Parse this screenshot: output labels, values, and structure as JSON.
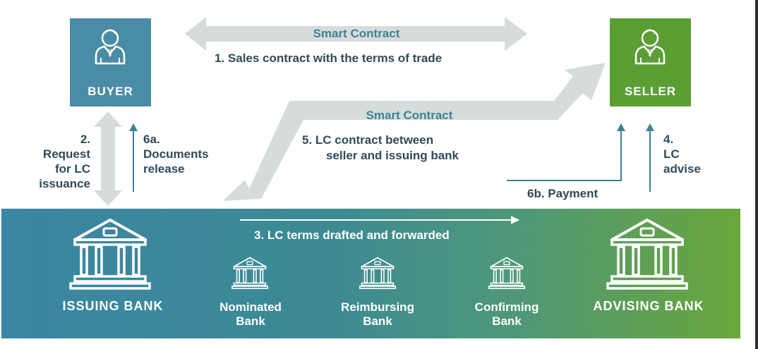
{
  "buyer": {
    "label": "BUYER"
  },
  "seller": {
    "label": "SELLER"
  },
  "arrow1": {
    "title": "Smart Contract",
    "text": "1. Sales contract with the terms of trade"
  },
  "arrow5": {
    "title": "Smart Contract",
    "line1": "5.  LC contract between",
    "line2": "seller and issuing bank"
  },
  "step2": {
    "lines": [
      "2.",
      "Request",
      "for LC",
      "issuance"
    ]
  },
  "step6a": {
    "lines": [
      "6a.",
      "Documents",
      "release"
    ]
  },
  "step4": {
    "lines": [
      "4.",
      "LC",
      "advise"
    ]
  },
  "step6b": {
    "text": "6b. Payment"
  },
  "step3": {
    "text": "3. LC terms drafted and  forwarded"
  },
  "banks": {
    "issuing": "ISSUING BANK",
    "nominated": [
      "Nominated",
      "Bank"
    ],
    "reimbursing": [
      "Reimbursing",
      "Bank"
    ],
    "confirming": [
      "Confirming",
      "Bank"
    ],
    "advising": "ADVISING BANK"
  },
  "colors": {
    "buyer_box": "#4a8ca6",
    "seller_box": "#5a9e34",
    "band_start": "#3a8aa6",
    "band_end": "#6aa43a",
    "big_arrow": "#d6dcdc",
    "text_teal": "#3f8294",
    "text_dark": "#2f4a59"
  },
  "icons": [
    "person-icon",
    "bank-icon"
  ]
}
